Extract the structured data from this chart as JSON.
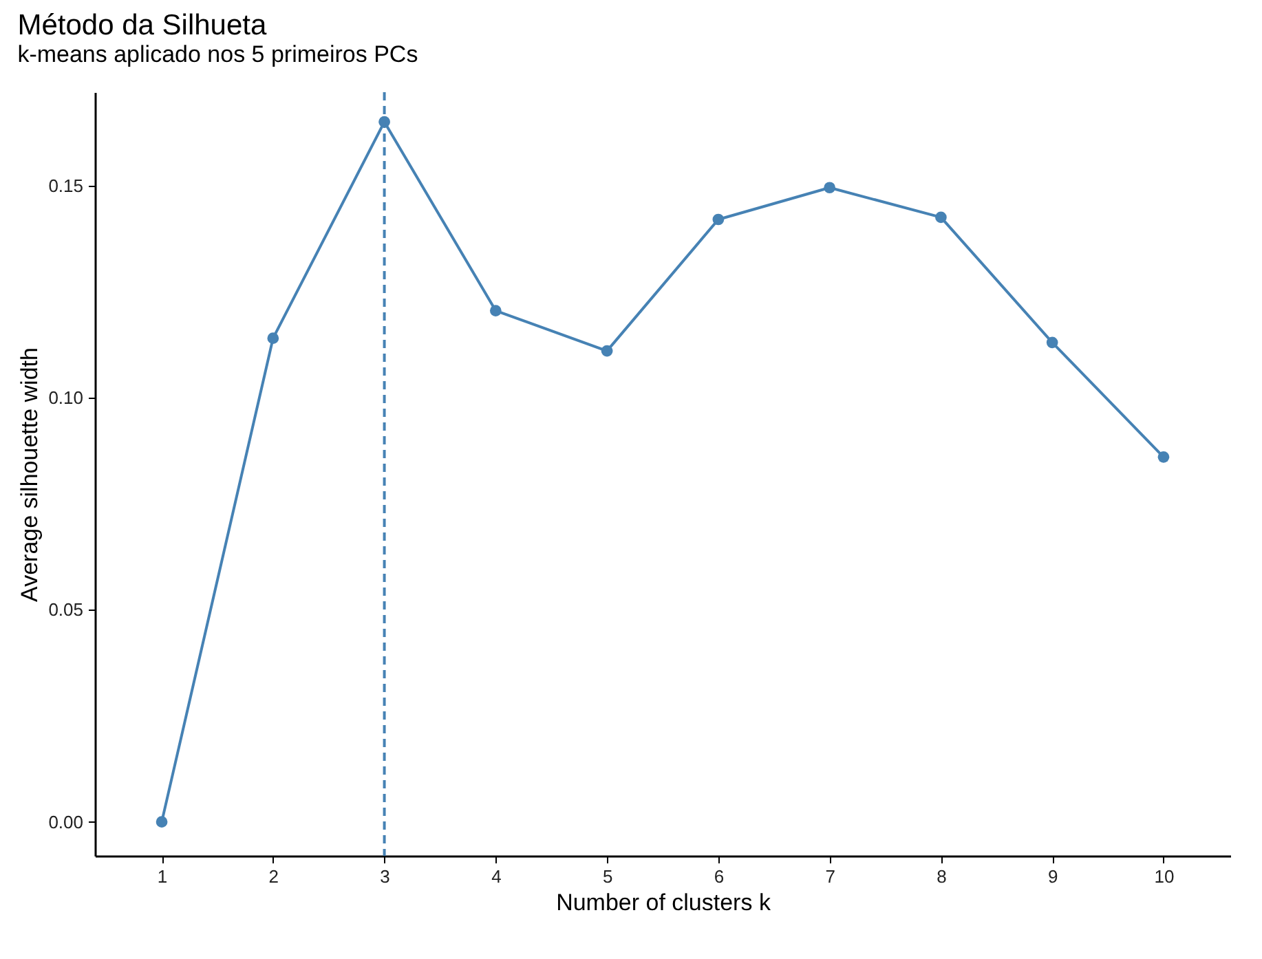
{
  "chart_data": {
    "type": "line",
    "title": "Método da Silhueta",
    "subtitle": "k-means aplicado nos 5 primeiros PCs",
    "xlabel": "Number of clusters k",
    "ylabel": "Average silhouette width",
    "categories": [
      "1",
      "2",
      "3",
      "4",
      "5",
      "6",
      "7",
      "8",
      "9",
      "10"
    ],
    "series": [
      {
        "color": "#4682b4",
        "values": [
          0.0,
          0.114,
          0.165,
          0.1205,
          0.111,
          0.142,
          0.1495,
          0.1425,
          0.113,
          0.086
        ]
      }
    ],
    "ylim": [
      -0.008,
      0.172
    ],
    "yticks": [
      {
        "value": 0,
        "label": "0.00"
      },
      {
        "value": 0.05,
        "label": "0.05"
      },
      {
        "value": 0.1,
        "label": "0.10"
      },
      {
        "value": 0.15,
        "label": "0.15"
      }
    ],
    "ref_lines": [
      {
        "axis": "x",
        "value": "3",
        "color": "#4682b4",
        "line_style": "dashed"
      }
    ],
    "marker": "circle",
    "line_style": "solid",
    "grid": false
  }
}
